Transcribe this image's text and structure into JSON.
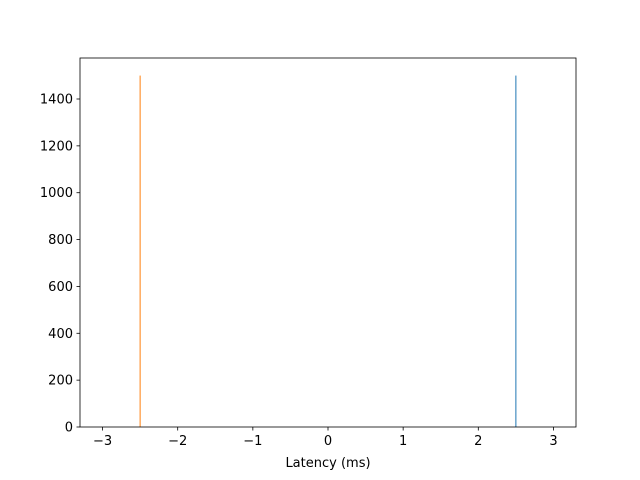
{
  "chart_data": {
    "type": "bar",
    "title": "",
    "xlabel": "Latency (ms)",
    "ylabel": "",
    "xlim": [
      -3.3,
      3.3
    ],
    "ylim": [
      0,
      1575
    ],
    "xticks": [
      -3,
      -2,
      -1,
      0,
      1,
      2,
      3
    ],
    "yticks": [
      0,
      200,
      400,
      600,
      800,
      1000,
      1200,
      1400
    ],
    "grid": false,
    "legend": "none",
    "bar_width": 0.01,
    "series": [
      {
        "x": [
          2.5
        ],
        "values": [
          1500
        ],
        "color": "#1f77b4"
      },
      {
        "x": [
          -2.5
        ],
        "values": [
          1500
        ],
        "color": "#ff7f0e"
      }
    ]
  }
}
